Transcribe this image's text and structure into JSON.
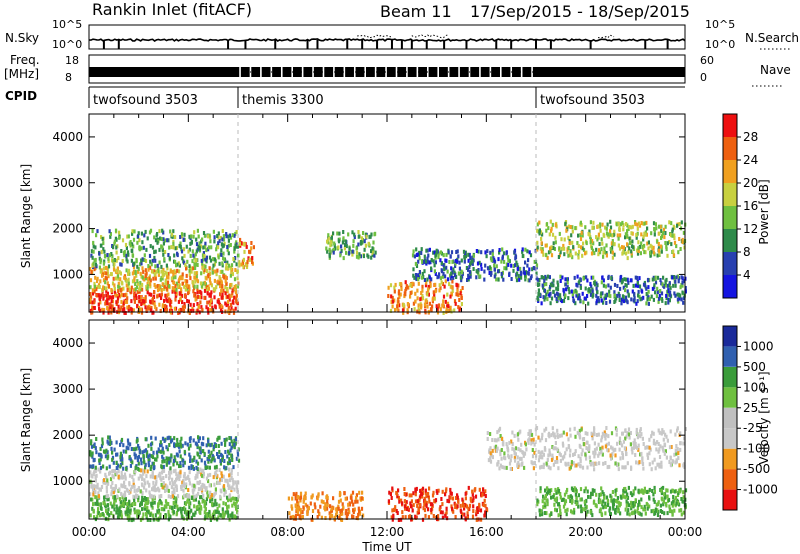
{
  "header": {
    "station": "Rankin Inlet (fitACF)",
    "beam": "Beam 11",
    "dates": "17/Sep/2015 - 18/Sep/2015"
  },
  "status": {
    "nsky_label": "N.Sky",
    "nsearch_label": "N.Search",
    "freq_label": "Freq.",
    "freq_unit": "[MHz]",
    "nave_label": "Nave",
    "cpid_label": "CPID",
    "left_ticks_nsky": [
      "10^5",
      "10^0"
    ],
    "right_ticks_nsky": [
      "10^5",
      "10^0"
    ],
    "left_ticks_freq": [
      "18",
      "8"
    ],
    "right_ticks_nave": [
      "60",
      "0"
    ],
    "cpid_segments": [
      {
        "name": "twofsound 3503",
        "start_hour": 0
      },
      {
        "name": "themis 3300",
        "start_hour": 6
      },
      {
        "name": "twofsound 3503",
        "start_hour": 18
      }
    ]
  },
  "colors": {
    "power": [
      "#1515e0",
      "#2840b0",
      "#2e8a4a",
      "#6fc040",
      "#c8d040",
      "#f0a020",
      "#ee6010",
      "#ee1010"
    ],
    "velocity": [
      "#e81010",
      "#ee6010",
      "#f09a20",
      "#c0c0c0",
      "#c8c8c8",
      "#6fc040",
      "#3a9c3a",
      "#3060b0",
      "#1a2a9a"
    ]
  },
  "chart_data": [
    {
      "type": "heatmap",
      "name": "power",
      "xlabel": "",
      "ylabel": "Slant Range [km]",
      "xlim": [
        0,
        24
      ],
      "ylim": [
        180,
        4500
      ],
      "yticks": [
        "1000",
        "2000",
        "3000",
        "4000"
      ],
      "xticks": [],
      "colorbar": {
        "label": "Power [dB]",
        "min": 0,
        "max": 32,
        "ticks": [
          "4",
          "8",
          "12",
          "16",
          "20",
          "24",
          "28"
        ]
      },
      "regions": [
        {
          "t0": 0.0,
          "t1": 6.0,
          "r0": 200,
          "r1": 700,
          "value": 28
        },
        {
          "t0": 0.0,
          "t1": 6.0,
          "r0": 700,
          "r1": 1200,
          "value": 20
        },
        {
          "t0": 0.0,
          "t1": 6.0,
          "r0": 1200,
          "r1": 2000,
          "value": 12
        },
        {
          "t0": 6.0,
          "t1": 6.6,
          "r0": 1200,
          "r1": 1800,
          "value": 24
        },
        {
          "t0": 9.5,
          "t1": 11.5,
          "r0": 1400,
          "r1": 2000,
          "value": 12
        },
        {
          "t0": 12.0,
          "t1": 15.0,
          "r0": 200,
          "r1": 900,
          "value": 24
        },
        {
          "t0": 13.0,
          "t1": 18.0,
          "r0": 900,
          "r1": 1600,
          "value": 8
        },
        {
          "t0": 18.0,
          "t1": 24.0,
          "r0": 1400,
          "r1": 2200,
          "value": 16
        },
        {
          "t0": 18.0,
          "t1": 24.0,
          "r0": 400,
          "r1": 1000,
          "value": 8
        }
      ]
    },
    {
      "type": "heatmap",
      "name": "velocity",
      "xlabel": "Time UT",
      "ylabel": "Slant Range [km]",
      "xlim": [
        0,
        24
      ],
      "ylim": [
        180,
        4500
      ],
      "yticks": [
        "1000",
        "2000",
        "3000",
        "4000"
      ],
      "xticks": [
        "00:00",
        "04:00",
        "08:00",
        "12:00",
        "16:00",
        "20:00",
        "00:00"
      ],
      "colorbar": {
        "label": "Velocity [m s⁻¹]",
        "ticks": [
          "1000",
          "500",
          "100",
          "25",
          "-25",
          "-100",
          "-500",
          "-1000"
        ]
      },
      "regions": [
        {
          "t0": 0.0,
          "t1": 6.0,
          "r0": 200,
          "r1": 700,
          "value": 100
        },
        {
          "t0": 0.0,
          "t1": 6.0,
          "r0": 700,
          "r1": 1300,
          "value": 0
        },
        {
          "t0": 0.0,
          "t1": 6.0,
          "r0": 1300,
          "r1": 2000,
          "value": 500
        },
        {
          "t0": 8.0,
          "t1": 11.0,
          "r0": 200,
          "r1": 800,
          "value": -100
        },
        {
          "t0": 12.0,
          "t1": 16.0,
          "r0": 200,
          "r1": 900,
          "value": -500
        },
        {
          "t0": 16.0,
          "t1": 24.0,
          "r0": 1300,
          "r1": 2200,
          "value": 0
        },
        {
          "t0": 18.0,
          "t1": 24.0,
          "r0": 300,
          "r1": 900,
          "value": 100
        }
      ]
    }
  ]
}
